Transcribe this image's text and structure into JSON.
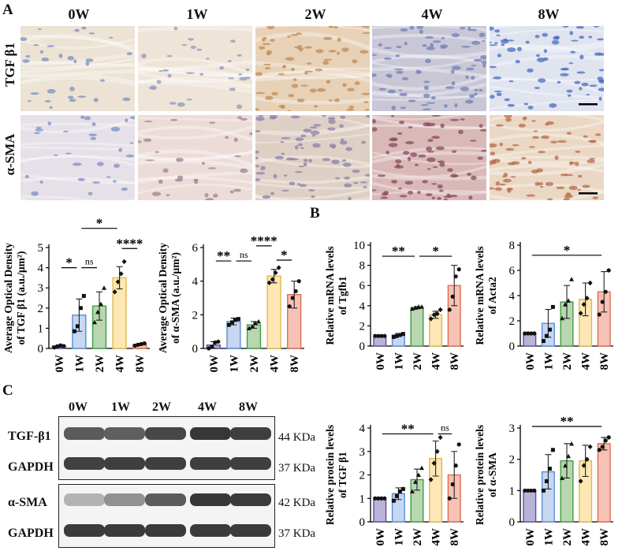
{
  "panels": {
    "A": "A",
    "B": "B",
    "C": "C"
  },
  "ihc": {
    "timepoints": [
      "0W",
      "1W",
      "2W",
      "4W",
      "8W"
    ],
    "rows": [
      "TGF β1",
      "α-SMA"
    ],
    "tones": [
      [
        "#ece3d4",
        "#efe4d8",
        "#e7d2b8",
        "#c9c6d6",
        "#dfe4ef"
      ],
      [
        "#e6e0e8",
        "#ecdcd8",
        "#ded0c4",
        "#d9b9b8",
        "#ead7c4"
      ]
    ],
    "nuclei": [
      [
        "#7a90bf",
        "#8a9abf",
        "#c48a52",
        "#6f7fb5",
        "#4a6cc2"
      ],
      [
        "#7b8fc6",
        "#a08090",
        "#8a80a8",
        "#8a4a5e",
        "#b56a48"
      ]
    ]
  },
  "chart_data": [
    {
      "id": "A1",
      "type": "bar",
      "categories": [
        "0W",
        "1W",
        "2W",
        "4W",
        "8W"
      ],
      "values": [
        0.12,
        1.65,
        2.1,
        3.5,
        0.2
      ],
      "errors": [
        0.06,
        0.8,
        0.7,
        0.55,
        0.05
      ],
      "points": [
        [
          0.05,
          0.1,
          0.15,
          0.12
        ],
        [
          0.85,
          1.1,
          2.0,
          2.6
        ],
        [
          1.3,
          1.8,
          2.2,
          3.0
        ],
        [
          2.8,
          3.3,
          3.7,
          4.3
        ],
        [
          0.14,
          0.18,
          0.22,
          0.25
        ]
      ],
      "ylabel": [
        "Average Optical Density",
        "of TGF β1 (a.u./μm²)"
      ],
      "ylim": [
        0,
        5
      ],
      "yticks": [
        0,
        1,
        2,
        3,
        4,
        5
      ],
      "significance": [
        {
          "from": 0,
          "to": 1,
          "label": "*",
          "level": 4.0
        },
        {
          "from": 1,
          "to": 2,
          "label": "ns",
          "level": 4.0
        },
        {
          "from": 1,
          "to": 3,
          "label": "*",
          "level": 5.95
        },
        {
          "from": 3,
          "to": 4,
          "label": "****",
          "level": 4.95
        }
      ]
    },
    {
      "id": "A2",
      "type": "bar",
      "categories": [
        "0W",
        "1W",
        "2W",
        "4W",
        "8W"
      ],
      "values": [
        0.2,
        1.6,
        1.4,
        4.3,
        3.2
      ],
      "errors": [
        0.2,
        0.2,
        0.2,
        0.4,
        0.8
      ],
      "points": [
        [
          0.0,
          0.1,
          0.35,
          0.4
        ],
        [
          1.4,
          1.55,
          1.7,
          1.75
        ],
        [
          1.2,
          1.3,
          1.5,
          1.6
        ],
        [
          3.9,
          4.1,
          4.5,
          4.8
        ],
        [
          2.5,
          3.0,
          3.4,
          4.0
        ]
      ],
      "ylabel": [
        "Average Optical Density",
        "of α-SMA (a.u./μm²)"
      ],
      "ylim": [
        0,
        6
      ],
      "yticks": [
        0,
        2,
        4,
        6
      ],
      "significance": [
        {
          "from": 0,
          "to": 1,
          "label": "**",
          "level": 5.2
        },
        {
          "from": 1,
          "to": 2,
          "label": "ns",
          "level": 5.2
        },
        {
          "from": 2,
          "to": 3,
          "label": "****",
          "level": 6.1
        },
        {
          "from": 3,
          "to": 4,
          "label": "*",
          "level": 5.25
        }
      ]
    },
    {
      "id": "B1",
      "type": "bar",
      "categories": [
        "0W",
        "1W",
        "2W",
        "4W",
        "8W"
      ],
      "values": [
        1.0,
        1.1,
        3.8,
        3.1,
        6.0
      ],
      "errors": [
        0.05,
        0.15,
        0.1,
        0.35,
        2.0
      ],
      "points": [
        [
          1.0,
          1.0,
          1.0,
          1.0
        ],
        [
          0.9,
          1.0,
          1.1,
          1.2
        ],
        [
          3.7,
          3.8,
          3.9,
          3.9
        ],
        [
          2.7,
          3.1,
          3.2,
          3.6
        ],
        [
          3.6,
          4.9,
          6.9,
          7.6
        ]
      ],
      "ylabel": [
        "Relative mRNA levels",
        "of Tgfb1"
      ],
      "ylim": [
        0,
        10
      ],
      "yticks": [
        0,
        2,
        4,
        6,
        8,
        10
      ],
      "significance": [
        {
          "from": 0,
          "to": 2,
          "label": "**",
          "level": 8.9
        },
        {
          "from": 2,
          "to": 4,
          "label": "*",
          "level": 8.9
        }
      ]
    },
    {
      "id": "B2",
      "type": "bar",
      "categories": [
        "0W",
        "1W",
        "2W",
        "4W",
        "8W"
      ],
      "values": [
        1.0,
        1.8,
        3.5,
        3.7,
        4.3
      ],
      "errors": [
        0.05,
        1.1,
        1.3,
        1.3,
        1.6
      ],
      "points": [
        [
          1.0,
          1.0,
          1.0,
          1.0
        ],
        [
          0.4,
          0.8,
          1.3,
          3.1
        ],
        [
          2.2,
          3.3,
          3.6,
          5.3
        ],
        [
          2.6,
          3.3,
          3.8,
          5.0
        ],
        [
          2.5,
          3.5,
          4.3,
          6.0
        ]
      ],
      "ylabel": [
        "Relative mRNA levels",
        "of Acta2"
      ],
      "ylim": [
        0,
        8
      ],
      "yticks": [
        0,
        2,
        4,
        6,
        8
      ],
      "significance": [
        {
          "from": 0,
          "to": 4,
          "label": "*",
          "level": 7.2
        }
      ]
    },
    {
      "id": "C1",
      "type": "bar",
      "categories": [
        "0W",
        "1W",
        "2W",
        "4W",
        "8W"
      ],
      "values": [
        1.0,
        1.2,
        1.8,
        2.7,
        2.0
      ],
      "errors": [
        0.02,
        0.25,
        0.45,
        0.75,
        1.0
      ],
      "points": [
        [
          1.0,
          1.0,
          1.0,
          1.0
        ],
        [
          0.9,
          1.1,
          1.3,
          1.4
        ],
        [
          1.3,
          1.7,
          2.0,
          2.3
        ],
        [
          1.8,
          2.5,
          3.0,
          3.6
        ],
        [
          1.0,
          1.6,
          2.4,
          3.3
        ]
      ],
      "ylabel": [
        "Relative protein levels",
        "of TGF β1"
      ],
      "ylim": [
        0,
        4
      ],
      "yticks": [
        0,
        1,
        2,
        3,
        4
      ],
      "significance": [
        {
          "from": 0,
          "to": 3,
          "label": "**",
          "level": 3.75
        },
        {
          "from": 3,
          "to": 4,
          "label": "ns",
          "level": 3.75
        }
      ]
    },
    {
      "id": "C2",
      "type": "bar",
      "categories": [
        "0W",
        "1W",
        "2W",
        "4W",
        "8W"
      ],
      "values": [
        1.0,
        1.6,
        1.95,
        1.95,
        2.5
      ],
      "errors": [
        0.02,
        0.55,
        0.55,
        0.5,
        0.2
      ],
      "points": [
        [
          1.0,
          1.0,
          1.0,
          1.0
        ],
        [
          1.0,
          1.3,
          1.7,
          2.3
        ],
        [
          1.4,
          1.8,
          2.1,
          2.5
        ],
        [
          1.3,
          1.8,
          2.0,
          2.4
        ],
        [
          2.3,
          2.4,
          2.6,
          2.7
        ]
      ],
      "ylabel": [
        "Relative protein levels",
        "of α-SMA"
      ],
      "ylim": [
        0,
        3
      ],
      "yticks": [
        0,
        1,
        2,
        3
      ],
      "significance": [
        {
          "from": 0,
          "to": 4,
          "label": "**",
          "level": 3.05
        }
      ]
    }
  ],
  "colors": {
    "fills": [
      "#b9b3d8",
      "#c5d7f1",
      "#b7d7b0",
      "#fde7b5",
      "#f7c2b6"
    ],
    "edges": [
      "#5b4fa0",
      "#5b8bd8",
      "#3f9c3f",
      "#e0b84f",
      "#e06a4f"
    ]
  },
  "blot": {
    "lanes": [
      "0W",
      "1W",
      "2W",
      "4W",
      "8W"
    ],
    "rows": [
      {
        "label": "TGF-β1",
        "size": "44 KDa",
        "intensity": [
          0.72,
          0.7,
          0.82,
          0.9,
          0.86
        ]
      },
      {
        "label": "GAPDH",
        "size": "37 KDa",
        "intensity": [
          0.85,
          0.86,
          0.86,
          0.86,
          0.86
        ]
      },
      {
        "label": "α-SMA",
        "size": "42 KDa",
        "intensity": [
          0.28,
          0.45,
          0.72,
          0.9,
          0.88
        ]
      },
      {
        "label": "GAPDH",
        "size": "37 KDa",
        "intensity": [
          0.88,
          0.88,
          0.88,
          0.88,
          0.88
        ]
      }
    ]
  }
}
